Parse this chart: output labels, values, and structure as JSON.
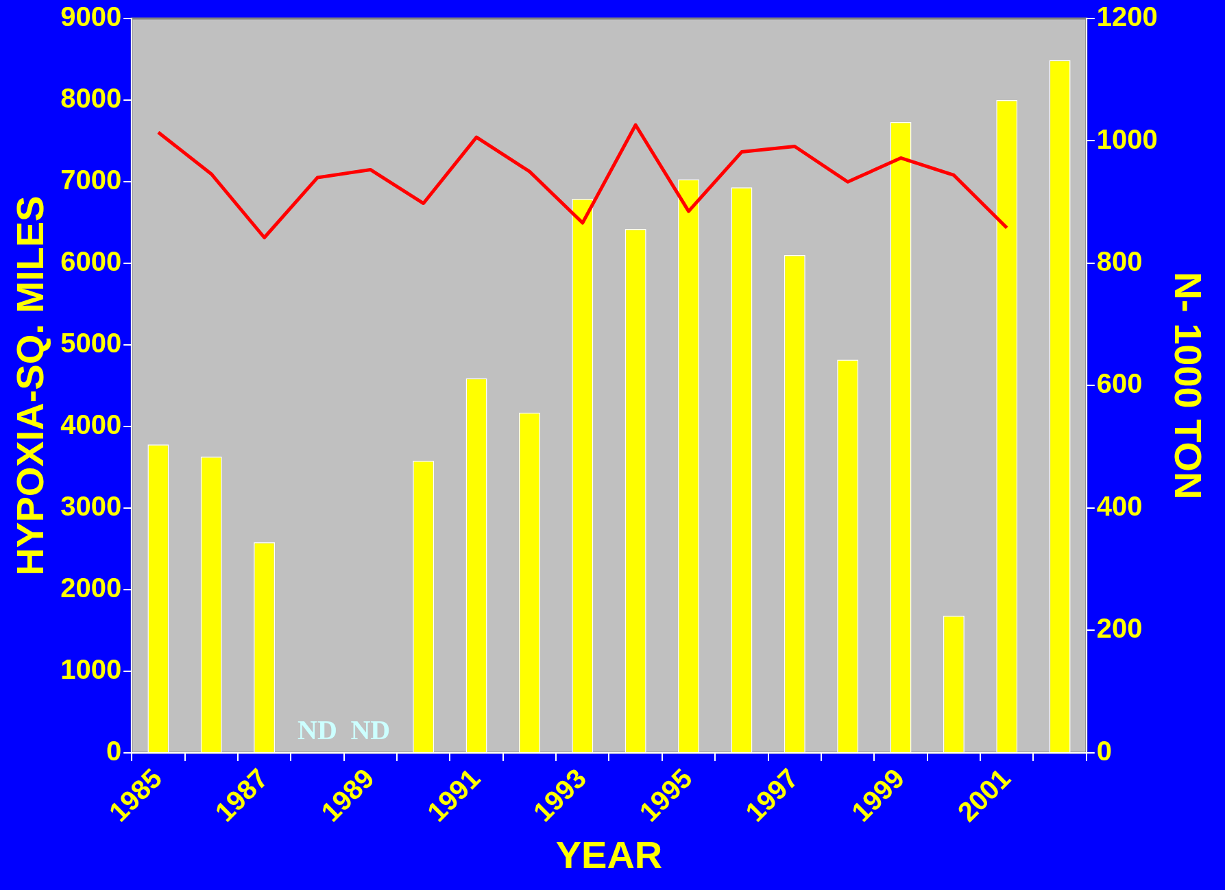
{
  "chart_data": {
    "type": "bar",
    "xlabel": "YEAR",
    "ylabel": "HYPOXIA-SQ. MILES",
    "y2label": "N- 1000 TON",
    "categories": [
      "1985",
      null,
      "1987",
      null,
      "1989",
      null,
      "1991",
      null,
      "1993",
      null,
      "1995",
      null,
      "1997",
      null,
      "1999",
      null,
      "2001",
      null
    ],
    "series": [
      {
        "color": "#ffff00",
        "values": [
          3780,
          3630,
          2580,
          null,
          null,
          3580,
          4590,
          4170,
          6790,
          6420,
          7030,
          6930,
          6100,
          4820,
          7730,
          1680,
          8000,
          8490
        ],
        "value_labels": [
          null,
          null,
          null,
          "ND",
          "ND",
          null,
          null,
          null,
          null,
          null,
          null,
          null,
          null,
          null,
          null,
          null,
          null,
          null
        ]
      },
      {
        "type": "line",
        "axis": "y2",
        "color": "#ff0000",
        "marker": "none",
        "values": [
          1014,
          946,
          842,
          940,
          953,
          898,
          1006,
          950,
          866,
          1026,
          885,
          982,
          991,
          933,
          972,
          944,
          858,
          null
        ]
      }
    ],
    "ylim": [
      0,
      9000
    ],
    "yticks": [
      0,
      1000,
      2000,
      3000,
      4000,
      5000,
      6000,
      7000,
      8000,
      9000
    ],
    "y2lim": [
      0,
      1200
    ],
    "y2ticks": [
      0,
      200,
      400,
      600,
      800,
      1000,
      1200
    ],
    "legend": false
  }
}
